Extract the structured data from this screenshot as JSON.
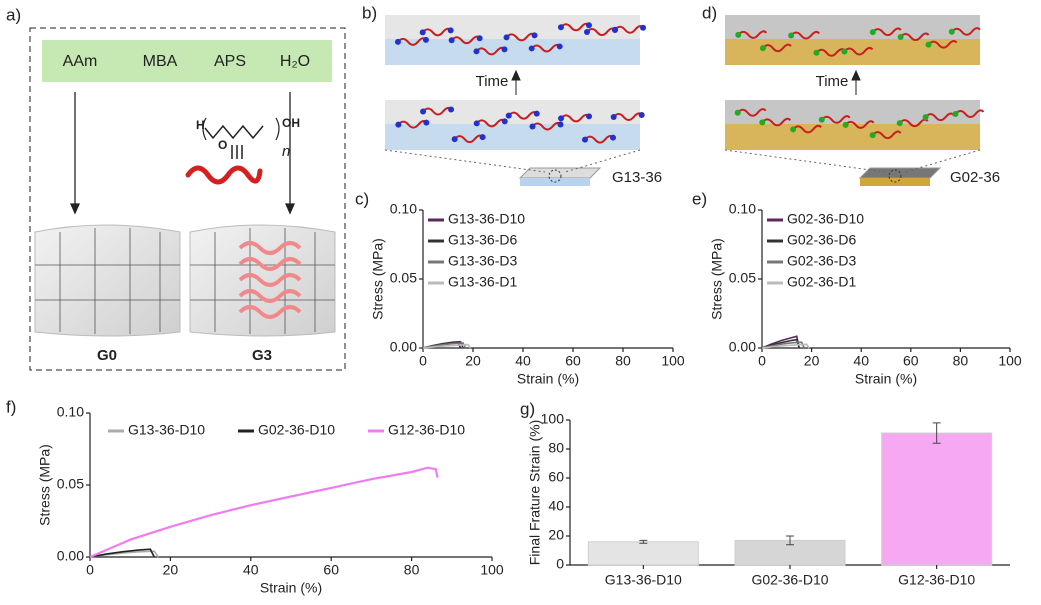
{
  "panel_labels": [
    "a)",
    "b)",
    "c)",
    "d)",
    "e)",
    "f)",
    "g)"
  ],
  "panel_a": {
    "reagents": [
      "AAm",
      "MBA",
      "APS",
      "H₂O"
    ],
    "chem": [
      "H",
      "O",
      "OH",
      "n"
    ],
    "samples": [
      "G0",
      "G3"
    ]
  },
  "panel_b": {
    "arrow": "Time",
    "sample": "G13-36"
  },
  "panel_d": {
    "arrow": "Time",
    "sample": "G02-36"
  },
  "chart_data": [
    {
      "type": "line",
      "xlabel": "Strain (%)",
      "ylabel": "Stress (MPa)",
      "xlim": [
        0,
        100
      ],
      "ylim": [
        0,
        0.1
      ],
      "xticks": [
        0,
        20,
        40,
        60,
        80,
        100
      ],
      "yticks": [
        {
          "value": 0,
          "label": "0.00"
        },
        0.05,
        {
          "value": 0.1,
          "label": "0.10"
        }
      ],
      "legend": "upper left",
      "legend_orientation": "vertical",
      "series": [
        {
          "name": "G13-36-D10",
          "color": "#5a2a5c",
          "x": [
            0,
            4,
            8,
            12,
            15,
            16
          ],
          "values": [
            0,
            0.0018,
            0.0032,
            0.0042,
            0.0046,
            0
          ]
        },
        {
          "name": "G13-36-D6",
          "color": "#333333",
          "x": [
            0,
            4,
            8,
            12,
            14,
            15
          ],
          "values": [
            0,
            0.0016,
            0.0029,
            0.0038,
            0.004,
            0
          ]
        },
        {
          "name": "G13-36-D3",
          "color": "#777777",
          "x": [
            0,
            4,
            8,
            12,
            16,
            17
          ],
          "values": [
            0,
            0.0013,
            0.0024,
            0.0032,
            0.0036,
            0
          ]
        },
        {
          "name": "G13-36-D1",
          "color": "#bbbbbb",
          "x": [
            0,
            5,
            10,
            15,
            18,
            19
          ],
          "values": [
            0,
            0.0009,
            0.0016,
            0.0022,
            0.0025,
            0
          ]
        }
      ]
    },
    {
      "type": "line",
      "xlabel": "Strain (%)",
      "ylabel": "Stress (MPa)",
      "xlim": [
        0,
        100
      ],
      "ylim": [
        0,
        0.1
      ],
      "xticks": [
        0,
        20,
        40,
        60,
        80,
        100
      ],
      "yticks": [
        {
          "value": 0,
          "label": "0.00"
        },
        0.05,
        {
          "value": 0.1,
          "label": "0.10"
        }
      ],
      "legend": "upper left",
      "legend_orientation": "vertical",
      "series": [
        {
          "name": "G02-36-D10",
          "color": "#5a2a5c",
          "x": [
            0,
            4,
            8,
            12,
            14,
            15
          ],
          "values": [
            0,
            0.003,
            0.0055,
            0.0075,
            0.0085,
            0
          ]
        },
        {
          "name": "G02-36-D6",
          "color": "#333333",
          "x": [
            0,
            4,
            8,
            12,
            14,
            15
          ],
          "values": [
            0,
            0.0022,
            0.004,
            0.0055,
            0.006,
            0
          ]
        },
        {
          "name": "G02-36-D3",
          "color": "#777777",
          "x": [
            0,
            4,
            8,
            12,
            16,
            17
          ],
          "values": [
            0,
            0.0015,
            0.0028,
            0.0038,
            0.0042,
            0
          ]
        },
        {
          "name": "G02-36-D1",
          "color": "#bbbbbb",
          "x": [
            0,
            5,
            10,
            15,
            18,
            19
          ],
          "values": [
            0,
            0.001,
            0.0018,
            0.0024,
            0.0027,
            0
          ]
        }
      ]
    },
    {
      "type": "line",
      "xlabel": "Strain (%)",
      "ylabel": "Stress (MPa)",
      "xlim": [
        0,
        100
      ],
      "ylim": [
        0,
        0.1
      ],
      "xticks": [
        0,
        20,
        40,
        60,
        80,
        100
      ],
      "yticks": [
        {
          "value": 0,
          "label": "0.00"
        },
        0.05,
        {
          "value": 0.1,
          "label": "0.10"
        }
      ],
      "legend": "upper left",
      "legend_orientation": "horizontal",
      "series": [
        {
          "name": "G13-36-D10",
          "color": "#aaaaaa",
          "x": [
            0,
            4,
            8,
            12,
            16,
            17
          ],
          "values": [
            0,
            0.0015,
            0.0027,
            0.0036,
            0.004,
            0
          ]
        },
        {
          "name": "G02-36-D10",
          "color": "#222222",
          "x": [
            0,
            4,
            8,
            12,
            15,
            16
          ],
          "values": [
            0,
            0.002,
            0.0036,
            0.0048,
            0.0054,
            0
          ]
        },
        {
          "name": "G12-36-D10",
          "color": "#f07cf0",
          "x": [
            0,
            10,
            20,
            30,
            40,
            50,
            60,
            70,
            80,
            84,
            86,
            86.5
          ],
          "values": [
            0,
            0.012,
            0.021,
            0.029,
            0.036,
            0.042,
            0.048,
            0.054,
            0.059,
            0.062,
            0.061,
            0.055
          ]
        }
      ]
    },
    {
      "type": "bar",
      "ylabel": "Final Frature Strain (%)",
      "ylim": [
        0,
        100
      ],
      "yticks": [
        0,
        20,
        40,
        60,
        80,
        100
      ],
      "categories": [
        "G13-36-D10",
        "G02-36-D10",
        "G12-36-D10"
      ],
      "values": [
        16,
        17,
        91
      ],
      "errors": [
        1,
        3,
        7
      ],
      "colors": [
        "#e4e4e4",
        "#d6d6d6",
        "#f6a8f3"
      ]
    }
  ]
}
